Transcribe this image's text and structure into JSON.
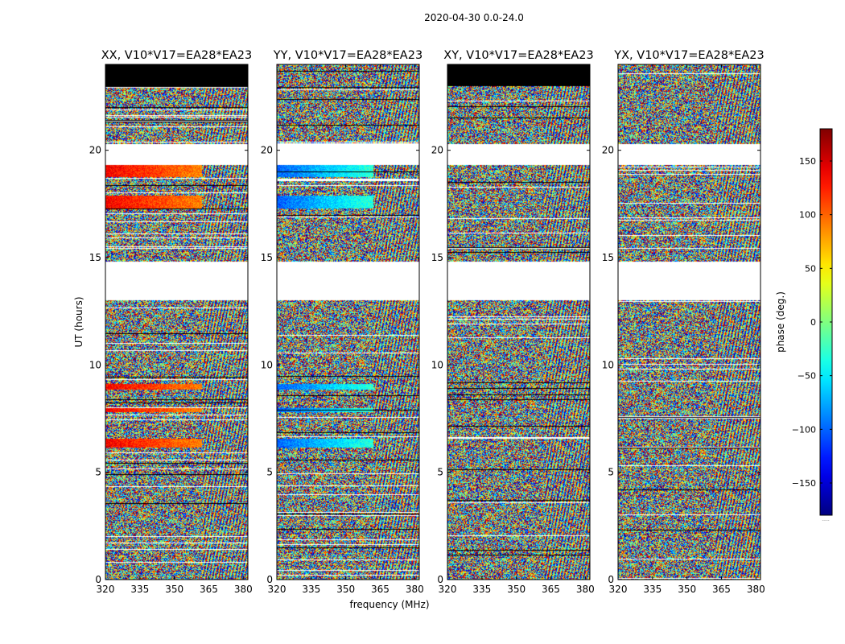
{
  "figure": {
    "suptitle": "2020-04-30 0.0-24.0",
    "xlabel": "frequency (MHz)",
    "ylabel": "UT (hours)",
    "colorbar_label": "phase (deg.)",
    "colorbar_footer": "....."
  },
  "chart_data": {
    "type": "heatmap",
    "title": "2020-04-30 0.0-24.0",
    "xlabel": "frequency (MHz)",
    "ylabel": "UT (hours)",
    "xlim": [
      320,
      382
    ],
    "ylim": [
      0,
      24
    ],
    "xticks": [
      320,
      335,
      350,
      365,
      380
    ],
    "yticks": [
      0,
      5,
      10,
      15,
      20
    ],
    "colorbar": {
      "label": "phase (deg.)",
      "range": [
        -180,
        180
      ],
      "ticks": [
        150,
        100,
        50,
        0,
        -50,
        -100,
        -150
      ],
      "tick_labels": [
        "150",
        "100",
        "50",
        "0",
        "−50",
        "−100",
        "−150"
      ],
      "colormap": "jet"
    },
    "panels": [
      {
        "title": "XX, V10*V17=EA28*EA23",
        "coherent_phase": "positive"
      },
      {
        "title": "YY, V10*V17=EA28*EA23",
        "coherent_phase": "negative"
      },
      {
        "title": "XY, V10*V17=EA28*EA23",
        "coherent_phase": "none"
      },
      {
        "title": "YX, V10*V17=EA28*EA23",
        "coherent_phase": "none"
      }
    ],
    "white_gaps_hours": [
      [
        13.0,
        14.8
      ],
      [
        19.3,
        20.3
      ]
    ],
    "black_top_band_hours": [
      23.0,
      24.0
    ],
    "black_top_band_panels": [
      0,
      2
    ]
  }
}
